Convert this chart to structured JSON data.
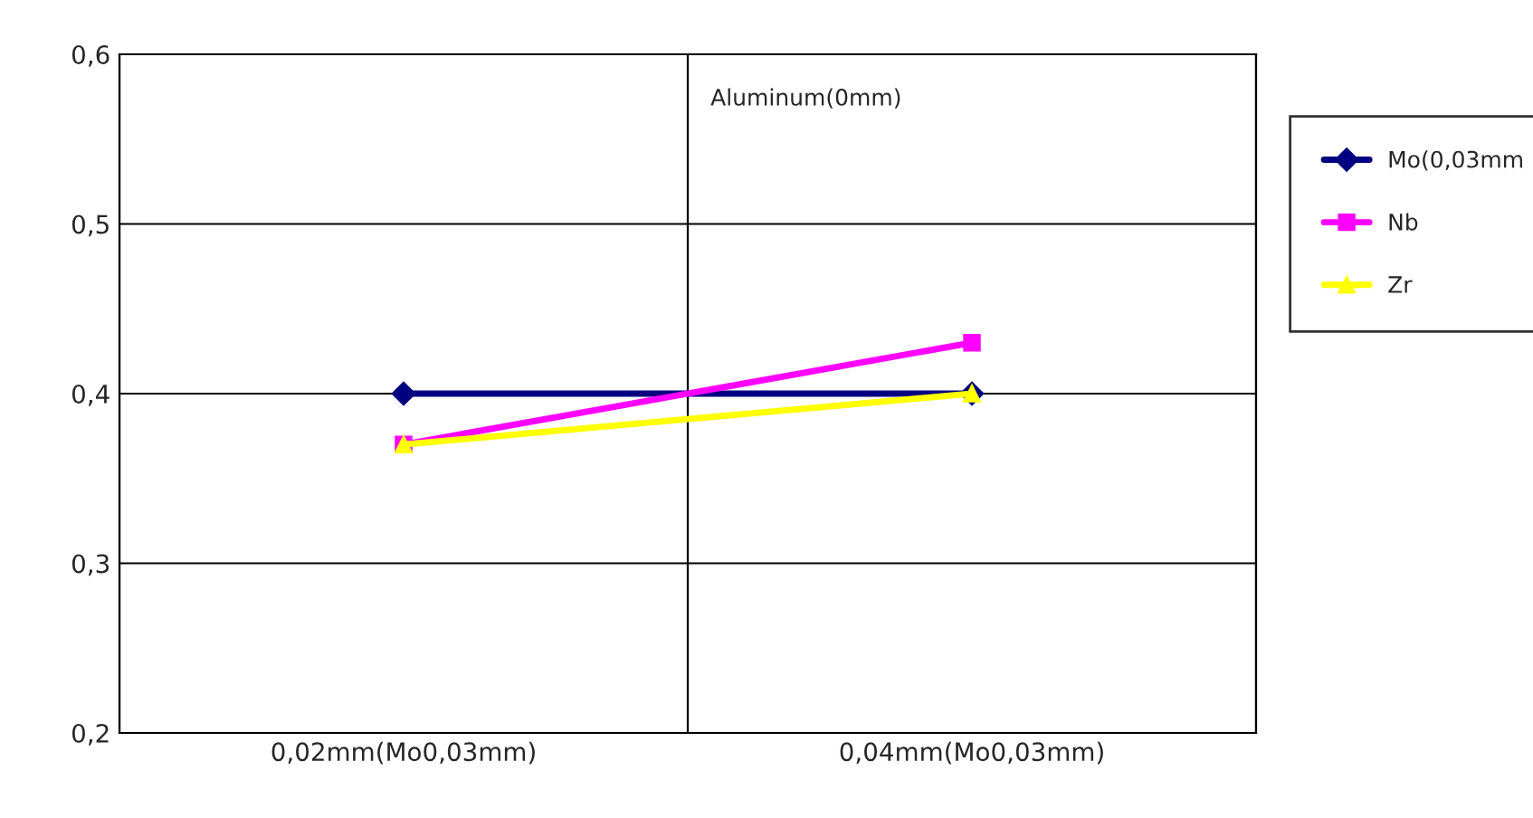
{
  "chart_data": {
    "type": "line",
    "categories": [
      "0,02mm(Mo0,03mm)",
      "0,04mm(Mo0,03mm)"
    ],
    "series": [
      {
        "name": "Mo(0,03mm",
        "color": "#000080",
        "values": [
          0.4,
          0.4
        ],
        "marker": "diamond"
      },
      {
        "name": "Nb",
        "color": "#ff00ff",
        "values": [
          0.37,
          0.43
        ],
        "marker": "square"
      },
      {
        "name": "Zr",
        "color": "#ffff00",
        "values": [
          0.37,
          0.4
        ],
        "marker": "triangle"
      }
    ],
    "ylim": [
      0.2,
      0.6
    ],
    "yticks": [
      {
        "value": 0.2,
        "label": "0,2"
      },
      {
        "value": 0.3,
        "label": "0,3"
      },
      {
        "value": 0.4,
        "label": "0,4"
      },
      {
        "value": 0.5,
        "label": "0,5"
      },
      {
        "value": 0.6,
        "label": "0,6"
      }
    ],
    "annotations": [
      "Aluminum(0mm)"
    ],
    "grid": true,
    "legend": "right",
    "line_style": "solid"
  }
}
